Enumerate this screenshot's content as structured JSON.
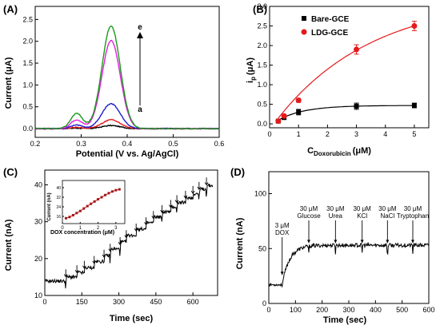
{
  "chart_data": [
    {
      "panel": "(A)",
      "type": "line",
      "xlabel": "Potential (V vs. Ag/AgCl)",
      "ylabel": "Current (μA)",
      "xlim": [
        0.2,
        0.6
      ],
      "ylim": [
        -0.2,
        2.8
      ],
      "xticks": [
        "0.2",
        "0.3",
        "0.4",
        "0.5",
        "0.6"
      ],
      "yticks": [
        "0.0",
        "0.5",
        "1.0",
        "1.5",
        "2.0",
        "2.5"
      ],
      "series": [
        {
          "color": "#000000",
          "peak": 0.07,
          "shoulder": 0.01
        },
        {
          "color": "#e31a1c",
          "peak": 0.2,
          "shoulder": 0.03
        },
        {
          "color": "#1f1fd0",
          "peak": 0.57,
          "shoulder": 0.08
        },
        {
          "color": "#e020e0",
          "peak": 2.02,
          "shoulder": 0.2
        },
        {
          "color": "#1a9a1a",
          "peak": 2.35,
          "shoulder": 0.35
        }
      ],
      "peak_potential": 0.365,
      "annotations": {
        "top": "e",
        "bottom": "a"
      }
    },
    {
      "panel": "(B)",
      "type": "scatter",
      "xlabel": "C",
      "xlabel_sub": "Doxorubicin",
      "xlabel_unit": "(μM)",
      "ylabel": "i",
      "ylabel_sub": "p",
      "ylabel_unit": "(μA)",
      "xlim": [
        0,
        5.5
      ],
      "ylim": [
        -0.1,
        3.0
      ],
      "xticks": [
        "0",
        "1",
        "2",
        "3",
        "4",
        "5"
      ],
      "yticks": [
        "0.0",
        "0.5",
        "1.0",
        "1.5",
        "2.0",
        "2.5",
        "3.0"
      ],
      "legend_position": "top-left",
      "series": [
        {
          "name": "Bare-GCE",
          "color": "#000000",
          "marker": "square",
          "x": [
            0.3,
            0.5,
            1,
            3,
            5
          ],
          "y": [
            0.07,
            0.16,
            0.3,
            0.45,
            0.47
          ],
          "err": [
            0.03,
            0.04,
            0.07,
            0.08,
            0.06
          ]
        },
        {
          "name": "LDG-GCE",
          "color": "#e31a1c",
          "marker": "circle",
          "x": [
            0.3,
            0.5,
            1,
            3,
            5
          ],
          "y": [
            0.07,
            0.2,
            0.6,
            1.9,
            2.5
          ],
          "err": [
            0.03,
            0.04,
            0.05,
            0.12,
            0.12
          ]
        }
      ]
    },
    {
      "panel": "(C)",
      "type": "line",
      "xlabel": "Time (sec)",
      "ylabel": "Current (nA)",
      "xlim": [
        0,
        700
      ],
      "ylim": [
        10,
        44
      ],
      "xticks": [
        "0",
        "150",
        "300",
        "450",
        "600"
      ],
      "yticks": [
        "10",
        "20",
        "30",
        "40"
      ],
      "steps_t": [
        85,
        130,
        160,
        200,
        240,
        265,
        305,
        330,
        370,
        410,
        440,
        475,
        510,
        535,
        570,
        600,
        625,
        655
      ],
      "steps_y": [
        13.9,
        15.0,
        16.2,
        17.5,
        19.2,
        20.8,
        22.6,
        24.5,
        26.3,
        28.0,
        29.7,
        31.3,
        32.7,
        34.0,
        35.2,
        36.5,
        37.6,
        38.8,
        39.8
      ],
      "inset": {
        "type": "line",
        "xlabel": "DOX concentration (μM)",
        "ylabel": "Current (nA)",
        "xlim": [
          0,
          3.5
        ],
        "ylim": [
          10,
          46
        ],
        "xticks": [
          "0",
          "1",
          "2",
          "3"
        ],
        "yticks": [
          "16",
          "24",
          "32",
          "40"
        ],
        "x": [
          0.2,
          0.4,
          0.6,
          0.8,
          1.0,
          1.2,
          1.4,
          1.6,
          1.8,
          2.0,
          2.2,
          2.4,
          2.6,
          2.8,
          3.0,
          3.2
        ],
        "y": [
          14.5,
          15.5,
          17,
          18.8,
          20.5,
          22.6,
          24.6,
          26.5,
          28.4,
          30.3,
          32,
          33.8,
          35.4,
          36.8,
          37.9,
          38.6
        ]
      }
    },
    {
      "panel": "(D)",
      "type": "line",
      "xlabel": "Time (sec)",
      "ylabel": "Current (nA)",
      "xlim": [
        0,
        600
      ],
      "ylim": [
        0,
        120
      ],
      "xticks": [
        "0",
        "100",
        "200",
        "300",
        "400",
        "500",
        "600"
      ],
      "yticks": [
        "0",
        "50",
        "100"
      ],
      "base_current": 17,
      "plateau_current": 53,
      "annotations": [
        {
          "line1": "3 μM",
          "line2": "DOX",
          "t": 50
        },
        {
          "line1": "30 μM",
          "line2": "Glucose",
          "t": 150
        },
        {
          "line1": "30 μM",
          "line2": "Urea",
          "t": 250
        },
        {
          "line1": "30 μM",
          "line2": "KCl",
          "t": 350
        },
        {
          "line1": "30 μM",
          "line2": "NaCl",
          "t": 445
        },
        {
          "line1": "30 μM",
          "line2": "Tryptophan",
          "t": 540
        }
      ]
    }
  ]
}
